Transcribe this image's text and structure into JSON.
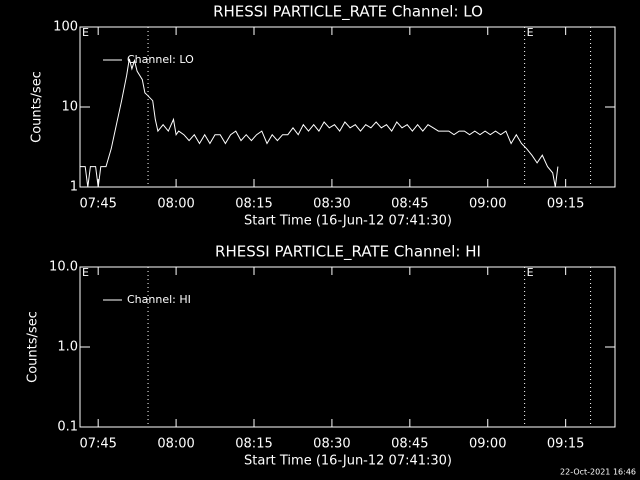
{
  "chart_data": [
    {
      "type": "line",
      "title": "RHESSI PARTICLE_RATE Channel: LO",
      "xlabel": "Start Time (16-Jun-12 07:41:30)",
      "ylabel": "Counts/sec",
      "x": [
        0,
        1,
        1.5,
        2,
        3,
        3.5,
        4,
        5,
        6,
        7,
        8,
        9,
        9.5,
        10,
        10.5,
        11,
        12,
        12.5,
        13,
        14,
        14.5,
        15,
        16,
        17,
        18,
        18.5,
        19,
        20,
        21,
        22,
        23,
        24,
        25,
        26,
        27,
        28,
        29,
        30,
        31,
        32,
        33,
        34,
        35,
        36,
        37,
        38,
        39,
        40,
        41,
        42,
        43,
        44,
        45,
        46,
        47,
        48,
        49,
        50,
        51,
        52,
        53,
        54,
        55,
        56,
        57,
        58,
        59,
        60,
        61,
        62,
        63,
        64,
        65,
        66,
        67,
        68,
        69,
        70,
        71,
        72,
        73,
        74,
        75,
        76,
        77,
        78,
        79,
        80,
        81,
        82,
        83,
        84,
        85,
        86,
        87,
        88,
        89,
        90,
        91,
        91.5,
        92
      ],
      "series": [
        {
          "name": "Channel: LO",
          "color": "#ffffff",
          "values": [
            1.8,
            1.8,
            1,
            1.8,
            1.8,
            1,
            1.8,
            1.8,
            3,
            6,
            12,
            25,
            40,
            30,
            38,
            28,
            22,
            15,
            14,
            12,
            7,
            5,
            6,
            5,
            7,
            4.5,
            5,
            4.5,
            3.8,
            4.5,
            3.5,
            4.5,
            3.5,
            4.5,
            4.5,
            3.5,
            4.5,
            5,
            3.8,
            4.5,
            3.8,
            4.5,
            5,
            3.5,
            4.5,
            3.8,
            4.5,
            4.5,
            5.5,
            4.5,
            6,
            5,
            6,
            5,
            6.5,
            5.5,
            6,
            5,
            6.5,
            5.5,
            6,
            5,
            6,
            5.5,
            6.5,
            5.5,
            6,
            5,
            6.5,
            5.5,
            6,
            5,
            6,
            5,
            6,
            5.5,
            5,
            5,
            5,
            4.5,
            5,
            5,
            4.5,
            5,
            4.5,
            5,
            4.5,
            5,
            4.5,
            5,
            3.5,
            4.5,
            3.5,
            3,
            2.5,
            2,
            2.5,
            1.8,
            1.5,
            1,
            1.8
          ]
        }
      ],
      "xlim": [
        0,
        103
      ],
      "xticks": [
        {
          "value": 3.5,
          "label": "07:45"
        },
        {
          "value": 18.5,
          "label": "08:00"
        },
        {
          "value": 33.5,
          "label": "08:15"
        },
        {
          "value": 48.5,
          "label": "08:30"
        },
        {
          "value": 63.5,
          "label": "08:45"
        },
        {
          "value": 78.5,
          "label": "09:00"
        },
        {
          "value": 93.5,
          "label": "09:15"
        }
      ],
      "ylim": [
        1,
        100
      ],
      "yticks": [
        1,
        10,
        100
      ],
      "log_y": true,
      "legend": "upper left",
      "vlines": [
        13.1,
        85.6,
        98.3
      ],
      "annotations": [
        {
          "x": 0,
          "label": "E"
        },
        {
          "x": 85.6,
          "label": "E"
        }
      ]
    },
    {
      "type": "line",
      "title": "RHESSI PARTICLE_RATE Channel: HI",
      "xlabel": "Start Time (16-Jun-12 07:41:30)",
      "ylabel": "Counts/sec",
      "x": [],
      "series": [
        {
          "name": "Channel: HI",
          "color": "#ffffff",
          "values": []
        }
      ],
      "xlim": [
        0,
        103
      ],
      "xticks": [
        {
          "value": 3.5,
          "label": "07:45"
        },
        {
          "value": 18.5,
          "label": "08:00"
        },
        {
          "value": 33.5,
          "label": "08:15"
        },
        {
          "value": 48.5,
          "label": "08:30"
        },
        {
          "value": 63.5,
          "label": "08:45"
        },
        {
          "value": 78.5,
          "label": "09:00"
        },
        {
          "value": 93.5,
          "label": "09:15"
        }
      ],
      "ylim": [
        0.1,
        10
      ],
      "yticks": [
        0.1,
        {
          "value": 1,
          "label": "1.0"
        },
        {
          "value": 10,
          "label": "10.0"
        }
      ],
      "log_y": true,
      "legend": "upper left",
      "vlines": [
        13.1,
        85.6,
        98.3
      ],
      "annotations": [
        {
          "x": 0,
          "label": "E"
        },
        {
          "x": 85.6,
          "label": "E"
        }
      ]
    }
  ],
  "footer": "22-Oct-2021 16:46"
}
